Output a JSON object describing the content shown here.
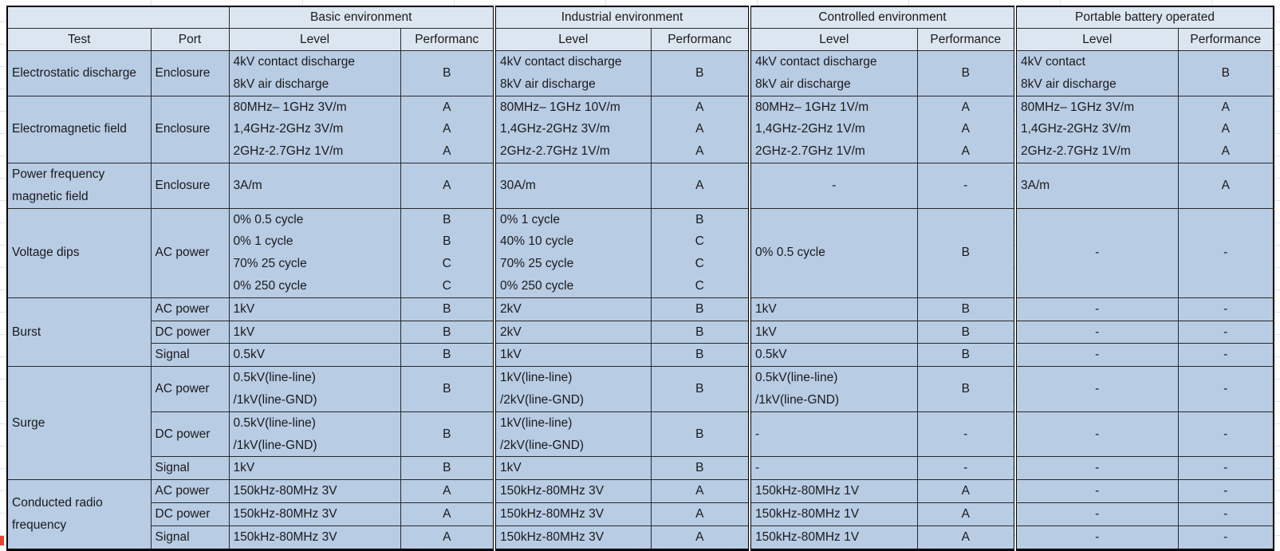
{
  "colors": {
    "header_fill": "#dce6f1",
    "cell_fill": "#b8cce4",
    "border": "#000000",
    "margin_gridline": "#dde3ee",
    "marker_red": "#e8432e"
  },
  "table": {
    "environments": [
      "Basic environment",
      "Industrial environment",
      "Controlled environment",
      "Portable battery operated"
    ],
    "columns": {
      "test": "Test",
      "port": "Port",
      "level": "Level",
      "performance": [
        "Performanc",
        "Performanc",
        "Performance",
        "Performance"
      ]
    },
    "groups": [
      {
        "test": "Electrostatic discharge",
        "rows": [
          {
            "port": "Enclosure",
            "cells": [
              {
                "level": [
                  "4kV contact discharge",
                  "8kV air discharge"
                ],
                "perf": [
                  "B"
                ]
              },
              {
                "level": [
                  "4kV contact discharge",
                  "8kV air discharge"
                ],
                "perf": [
                  "B"
                ]
              },
              {
                "level": [
                  "4kV contact discharge",
                  "8kV air discharge"
                ],
                "perf": [
                  "B"
                ]
              },
              {
                "level": [
                  "4kV contact",
                  "8kV air discharge"
                ],
                "perf": [
                  "B"
                ]
              }
            ]
          }
        ]
      },
      {
        "test": "Electromagnetic field",
        "rows": [
          {
            "port": "Enclosure",
            "cells": [
              {
                "level": [
                  "80MHz– 1GHz 3V/m",
                  "1,4GHz-2GHz 3V/m",
                  "2GHz-2.7GHz 1V/m"
                ],
                "perf": [
                  "A",
                  "A",
                  "A"
                ]
              },
              {
                "level": [
                  "80MHz– 1GHz 10V/m",
                  "1,4GHz-2GHz 3V/m",
                  "2GHz-2.7GHz 1V/m"
                ],
                "perf": [
                  "A",
                  "A",
                  "A"
                ]
              },
              {
                "level": [
                  "80MHz– 1GHz 1V/m",
                  "1,4GHz-2GHz 1V/m",
                  "2GHz-2.7GHz 1V/m"
                ],
                "perf": [
                  "A",
                  "A",
                  "A"
                ]
              },
              {
                "level": [
                  "80MHz– 1GHz 3V/m",
                  "1,4GHz-2GHz 3V/m",
                  "2GHz-2.7GHz 1V/m"
                ],
                "perf": [
                  "A",
                  "A",
                  "A"
                ]
              }
            ]
          }
        ]
      },
      {
        "test": "Power frequency magnetic field",
        "rows": [
          {
            "port": "Enclosure",
            "cells": [
              {
                "level": [
                  "3A/m"
                ],
                "perf": [
                  "A"
                ]
              },
              {
                "level": [
                  "30A/m"
                ],
                "perf": [
                  "A"
                ]
              },
              {
                "level": [
                  "-"
                ],
                "align": "center",
                "perf": [
                  "-"
                ]
              },
              {
                "level": [
                  "3A/m"
                ],
                "perf": [
                  "A"
                ]
              }
            ]
          }
        ]
      },
      {
        "test": "Voltage dips",
        "rows": [
          {
            "port": "AC power",
            "cells": [
              {
                "level": [
                  "0% 0.5 cycle",
                  "0% 1 cycle",
                  "70% 25 cycle",
                  "0% 250 cycle"
                ],
                "perf": [
                  "B",
                  "B",
                  "C",
                  "C"
                ]
              },
              {
                "level": [
                  "0% 1 cycle",
                  "40% 10 cycle",
                  "70% 25 cycle",
                  "0% 250 cycle"
                ],
                "perf": [
                  "B",
                  "C",
                  "C",
                  "C"
                ]
              },
              {
                "level": [
                  "0% 0.5 cycle"
                ],
                "perf": [
                  "B"
                ]
              },
              {
                "level": [
                  "-"
                ],
                "align": "center",
                "perf": [
                  "-"
                ]
              }
            ]
          }
        ]
      },
      {
        "test": "Burst",
        "rows": [
          {
            "port": "AC power",
            "cells": [
              {
                "level": [
                  "1kV"
                ],
                "perf": [
                  "B"
                ]
              },
              {
                "level": [
                  "2kV"
                ],
                "perf": [
                  "B"
                ]
              },
              {
                "level": [
                  "1kV"
                ],
                "perf": [
                  "B"
                ]
              },
              {
                "level": [
                  "-"
                ],
                "align": "center",
                "perf": [
                  "-"
                ]
              }
            ]
          },
          {
            "port": "DC power",
            "cells": [
              {
                "level": [
                  "1kV"
                ],
                "perf": [
                  "B"
                ]
              },
              {
                "level": [
                  "2kV"
                ],
                "perf": [
                  "B"
                ]
              },
              {
                "level": [
                  "1kV"
                ],
                "perf": [
                  "B"
                ]
              },
              {
                "level": [
                  "-"
                ],
                "align": "center",
                "perf": [
                  "-"
                ]
              }
            ]
          },
          {
            "port": "Signal",
            "cells": [
              {
                "level": [
                  "0.5kV"
                ],
                "perf": [
                  "B"
                ]
              },
              {
                "level": [
                  "1kV"
                ],
                "perf": [
                  "B"
                ]
              },
              {
                "level": [
                  "0.5kV"
                ],
                "perf": [
                  "B"
                ]
              },
              {
                "level": [
                  "-"
                ],
                "align": "center",
                "perf": [
                  "-"
                ]
              }
            ]
          }
        ]
      },
      {
        "test": "Surge",
        "rows": [
          {
            "port": "AC power",
            "cells": [
              {
                "level": [
                  "0.5kV(line-line)",
                  "/1kV(line-GND)"
                ],
                "perf": [
                  "B"
                ]
              },
              {
                "level": [
                  "1kV(line-line)",
                  "/2kV(line-GND)"
                ],
                "perf": [
                  "B"
                ]
              },
              {
                "level": [
                  "0.5kV(line-line)",
                  "/1kV(line-GND)"
                ],
                "perf": [
                  "B"
                ]
              },
              {
                "level": [
                  "-"
                ],
                "align": "center",
                "perf": [
                  "-"
                ]
              }
            ]
          },
          {
            "port": "DC power",
            "cells": [
              {
                "level": [
                  "0.5kV(line-line)",
                  "/1kV(line-GND)"
                ],
                "perf": [
                  "B"
                ]
              },
              {
                "level": [
                  "1kV(line-line)",
                  "/2kV(line-GND)"
                ],
                "perf": [
                  "B"
                ]
              },
              {
                "level": [
                  "-"
                ],
                "perf": [
                  "-"
                ]
              },
              {
                "level": [
                  "-"
                ],
                "align": "center",
                "perf": [
                  "-"
                ]
              }
            ]
          },
          {
            "port": "Signal",
            "cells": [
              {
                "level": [
                  "1kV"
                ],
                "perf": [
                  "B"
                ]
              },
              {
                "level": [
                  "1kV"
                ],
                "perf": [
                  "B"
                ]
              },
              {
                "level": [
                  "-"
                ],
                "perf": [
                  "-"
                ]
              },
              {
                "level": [
                  "-"
                ],
                "align": "center",
                "perf": [
                  "-"
                ]
              }
            ]
          }
        ]
      },
      {
        "test": "Conducted radio frequency",
        "rows": [
          {
            "port": "AC power",
            "cells": [
              {
                "level": [
                  "150kHz-80MHz 3V"
                ],
                "perf": [
                  "A"
                ]
              },
              {
                "level": [
                  "150kHz-80MHz 3V"
                ],
                "perf": [
                  "A"
                ]
              },
              {
                "level": [
                  "150kHz-80MHz 1V"
                ],
                "perf": [
                  "A"
                ]
              },
              {
                "level": [
                  "-"
                ],
                "align": "center",
                "perf": [
                  "-"
                ]
              }
            ]
          },
          {
            "port": "DC power",
            "cells": [
              {
                "level": [
                  "150kHz-80MHz 3V"
                ],
                "perf": [
                  "A"
                ]
              },
              {
                "level": [
                  "150kHz-80MHz 3V"
                ],
                "perf": [
                  "A"
                ]
              },
              {
                "level": [
                  "150kHz-80MHz 1V"
                ],
                "perf": [
                  "A"
                ]
              },
              {
                "level": [
                  "-"
                ],
                "align": "center",
                "perf": [
                  "-"
                ]
              }
            ]
          },
          {
            "port": "Signal",
            "cells": [
              {
                "level": [
                  "150kHz-80MHz 3V"
                ],
                "perf": [
                  "A"
                ]
              },
              {
                "level": [
                  "150kHz-80MHz 3V"
                ],
                "perf": [
                  "A"
                ]
              },
              {
                "level": [
                  "150kHz-80MHz 1V"
                ],
                "perf": [
                  "A"
                ]
              },
              {
                "level": [
                  "-"
                ],
                "align": "center",
                "perf": [
                  "-"
                ]
              }
            ]
          }
        ]
      }
    ]
  }
}
